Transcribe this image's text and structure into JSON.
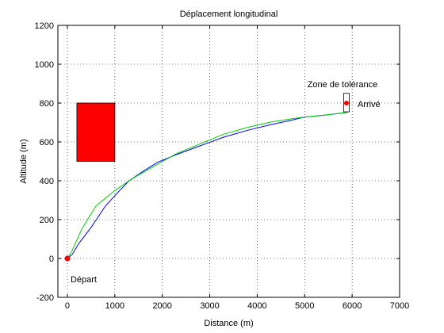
{
  "chart_data": {
    "type": "line",
    "title": "Déplacement longitudinal",
    "xlabel": "Distance (m)",
    "ylabel": "Altitude (m)",
    "xlim": [
      -200,
      7000
    ],
    "ylim": [
      -200,
      1200
    ],
    "xticks": [
      0,
      1000,
      2000,
      3000,
      4000,
      5000,
      6000,
      7000
    ],
    "yticks": [
      -200,
      0,
      200,
      400,
      600,
      800,
      1000,
      1200
    ],
    "grid": true,
    "series": [
      {
        "color": "#0000ff",
        "points": [
          [
            0,
            0
          ],
          [
            100,
            20
          ],
          [
            250,
            80
          ],
          [
            500,
            160
          ],
          [
            800,
            270
          ],
          [
            1100,
            350
          ],
          [
            1300,
            400
          ],
          [
            1600,
            450
          ],
          [
            1900,
            495
          ],
          [
            2300,
            535
          ],
          [
            2800,
            580
          ],
          [
            3300,
            625
          ],
          [
            3800,
            660
          ],
          [
            4300,
            690
          ],
          [
            4700,
            710
          ],
          [
            5000,
            728
          ],
          [
            5400,
            737
          ],
          [
            5900,
            752
          ]
        ]
      },
      {
        "color": "#00cc00",
        "points": [
          [
            0,
            0
          ],
          [
            100,
            40
          ],
          [
            300,
            150
          ],
          [
            600,
            270
          ],
          [
            1000,
            350
          ],
          [
            1300,
            400
          ],
          [
            1500,
            430
          ],
          [
            1900,
            485
          ],
          [
            2300,
            540
          ],
          [
            2800,
            590
          ],
          [
            3300,
            640
          ],
          [
            3800,
            675
          ],
          [
            4300,
            703
          ],
          [
            4700,
            718
          ],
          [
            5000,
            728
          ],
          [
            5400,
            738
          ],
          [
            5900,
            752
          ]
        ]
      }
    ],
    "obstacle": {
      "x": [
        200,
        1000
      ],
      "y": [
        500,
        800
      ],
      "color": "#ff0000"
    },
    "start": {
      "point": [
        0,
        0
      ],
      "label": "Départ",
      "color": "#ff0000"
    },
    "end": {
      "point": [
        5880,
        800
      ],
      "label": "Arrivé",
      "color": "#ff0000"
    },
    "tolerance_zone": {
      "label": "Zone de tolérance",
      "x": [
        5820,
        5940
      ],
      "y": [
        755,
        850
      ]
    }
  }
}
